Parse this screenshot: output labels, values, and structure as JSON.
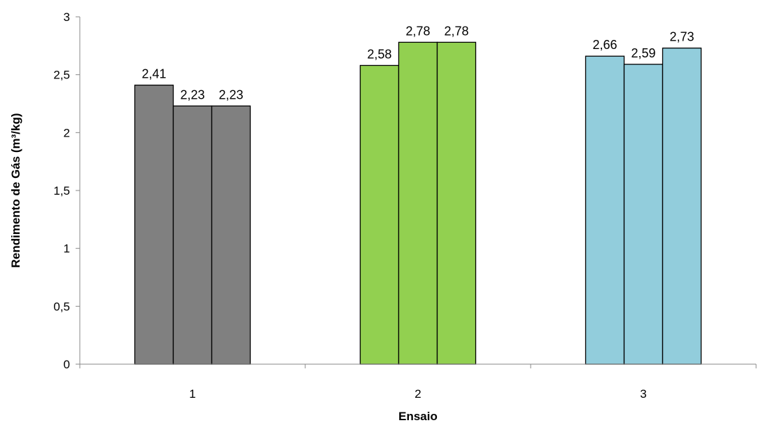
{
  "chart_data": {
    "type": "bar",
    "title": "",
    "xlabel": "Ensaio",
    "ylabel": "Rendimento de Gás (m³/kg)",
    "ylim": [
      0,
      3
    ],
    "yticks": [
      0,
      0.5,
      1,
      1.5,
      2,
      2.5,
      3
    ],
    "ytick_labels": [
      "0",
      "0,5",
      "1",
      "1,5",
      "2",
      "2,5",
      "3"
    ],
    "grid": false,
    "legend": "none",
    "groups": [
      {
        "category": "1",
        "color": "#808080",
        "values": [
          2.41,
          2.23,
          2.23
        ],
        "labels": [
          "2,41",
          "2,23",
          "2,23"
        ]
      },
      {
        "category": "2",
        "color": "#92D050",
        "values": [
          2.58,
          2.78,
          2.78
        ],
        "labels": [
          "2,58",
          "2,78",
          "2,78"
        ]
      },
      {
        "category": "3",
        "color": "#92CDDC",
        "values": [
          2.66,
          2.59,
          2.73
        ],
        "labels": [
          "2,66",
          "2,59",
          "2,73"
        ]
      }
    ]
  }
}
